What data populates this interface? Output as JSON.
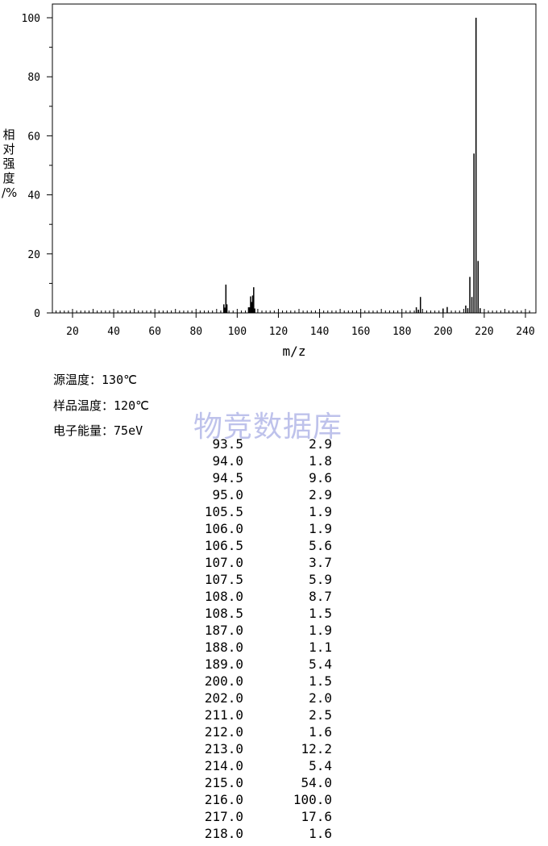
{
  "chart_data": {
    "type": "bar",
    "xlabel": "m/z",
    "ylabel": "相对强度/%",
    "xlim": [
      10,
      242
    ],
    "ylim": [
      0,
      100
    ],
    "x_ticks": [
      20,
      40,
      60,
      80,
      100,
      120,
      140,
      160,
      180,
      200,
      220,
      240
    ],
    "y_ticks": [
      0,
      20,
      40,
      60,
      80,
      100
    ],
    "grid": false,
    "peaks": [
      {
        "mz": 93.5,
        "intensity": 2.9
      },
      {
        "mz": 94.0,
        "intensity": 1.8
      },
      {
        "mz": 94.5,
        "intensity": 9.6
      },
      {
        "mz": 95.0,
        "intensity": 2.9
      },
      {
        "mz": 105.5,
        "intensity": 1.9
      },
      {
        "mz": 106.0,
        "intensity": 1.9
      },
      {
        "mz": 106.5,
        "intensity": 5.6
      },
      {
        "mz": 107.0,
        "intensity": 3.7
      },
      {
        "mz": 107.5,
        "intensity": 5.9
      },
      {
        "mz": 108.0,
        "intensity": 8.7
      },
      {
        "mz": 108.5,
        "intensity": 1.5
      },
      {
        "mz": 187.0,
        "intensity": 1.9
      },
      {
        "mz": 188.0,
        "intensity": 1.1
      },
      {
        "mz": 189.0,
        "intensity": 5.4
      },
      {
        "mz": 200.0,
        "intensity": 1.5
      },
      {
        "mz": 202.0,
        "intensity": 2.0
      },
      {
        "mz": 211.0,
        "intensity": 2.5
      },
      {
        "mz": 212.0,
        "intensity": 1.6
      },
      {
        "mz": 213.0,
        "intensity": 12.2
      },
      {
        "mz": 214.0,
        "intensity": 5.4
      },
      {
        "mz": 215.0,
        "intensity": 54.0
      },
      {
        "mz": 216.0,
        "intensity": 100.0
      },
      {
        "mz": 217.0,
        "intensity": 17.6
      },
      {
        "mz": 218.0,
        "intensity": 1.6
      }
    ]
  },
  "conditions": {
    "source_temp_label": "源温度：",
    "source_temp_value": "130℃",
    "sample_temp_label": "样品温度：",
    "sample_temp_value": "120℃",
    "electron_energy_label": "电子能量：",
    "electron_energy_value": "75eV"
  },
  "watermark": "物竞数据库",
  "peak_table": [
    {
      "mz": "93.5",
      "intensity": "2.9"
    },
    {
      "mz": "94.0",
      "intensity": "1.8"
    },
    {
      "mz": "94.5",
      "intensity": "9.6"
    },
    {
      "mz": "95.0",
      "intensity": "2.9"
    },
    {
      "mz": "105.5",
      "intensity": "1.9"
    },
    {
      "mz": "106.0",
      "intensity": "1.9"
    },
    {
      "mz": "106.5",
      "intensity": "5.6"
    },
    {
      "mz": "107.0",
      "intensity": "3.7"
    },
    {
      "mz": "107.5",
      "intensity": "5.9"
    },
    {
      "mz": "108.0",
      "intensity": "8.7"
    },
    {
      "mz": "108.5",
      "intensity": "1.5"
    },
    {
      "mz": "187.0",
      "intensity": "1.9"
    },
    {
      "mz": "188.0",
      "intensity": "1.1"
    },
    {
      "mz": "189.0",
      "intensity": "5.4"
    },
    {
      "mz": "200.0",
      "intensity": "1.5"
    },
    {
      "mz": "202.0",
      "intensity": "2.0"
    },
    {
      "mz": "211.0",
      "intensity": "2.5"
    },
    {
      "mz": "212.0",
      "intensity": "1.6"
    },
    {
      "mz": "213.0",
      "intensity": "12.2"
    },
    {
      "mz": "214.0",
      "intensity": "5.4"
    },
    {
      "mz": "215.0",
      "intensity": "54.0"
    },
    {
      "mz": "216.0",
      "intensity": "100.0"
    },
    {
      "mz": "217.0",
      "intensity": "17.6"
    },
    {
      "mz": "218.0",
      "intensity": "1.6"
    }
  ]
}
